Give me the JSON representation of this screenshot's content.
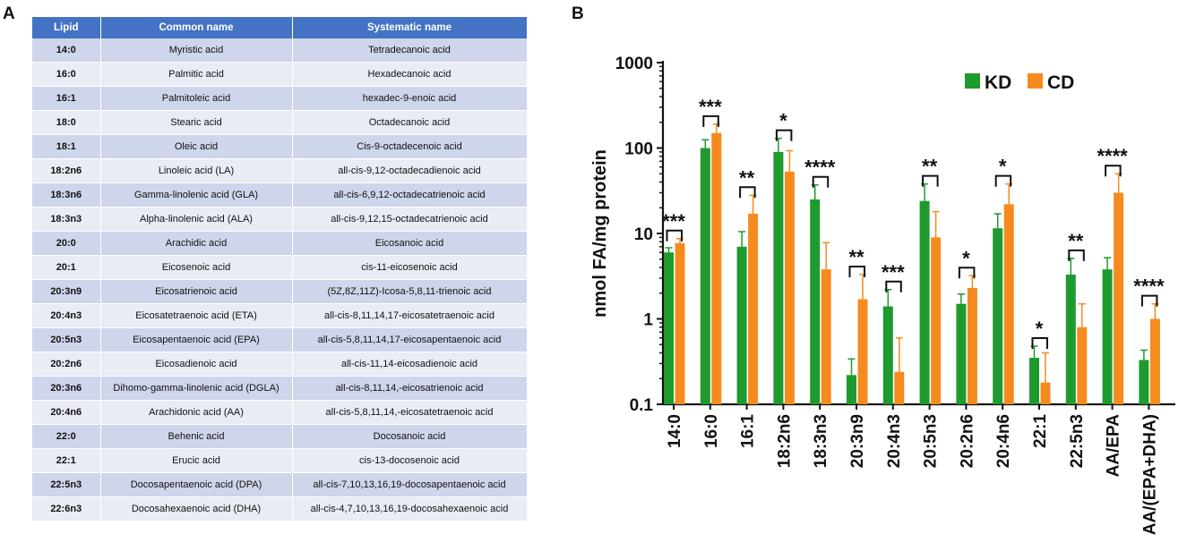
{
  "panel_a": {
    "label": "A",
    "headers": [
      "Lipid",
      "Common name",
      "Systematic name"
    ],
    "rows": [
      {
        "lipid": "14:0",
        "common": "Myristic acid",
        "systematic": "Tetradecanoic acid"
      },
      {
        "lipid": "16:0",
        "common": "Palmitic acid",
        "systematic": "Hexadecanoic acid"
      },
      {
        "lipid": "16:1",
        "common": "Palmitoleic acid",
        "systematic": "hexadec-9-enoic acid"
      },
      {
        "lipid": "18:0",
        "common": "Stearic acid",
        "systematic": "Octadecanoic acid"
      },
      {
        "lipid": "18:1",
        "common": "Oleic acid",
        "systematic": "Cis-9-octadecenoic acid"
      },
      {
        "lipid": "18:2n6",
        "common": "Linoleic acid (LA)",
        "systematic": "all-cis-9,12-octadecadienoic acid"
      },
      {
        "lipid": "18:3n6",
        "common": "Gamma-linolenic acid (GLA)",
        "systematic": "all-cis-6,9,12-octadecatrienoic acid"
      },
      {
        "lipid": "18:3n3",
        "common": "Alpha-linolenic acid (ALA)",
        "systematic": "all-cis-9,12,15-octadecatrienoic acid"
      },
      {
        "lipid": "20:0",
        "common": "Arachidic acid",
        "systematic": "Eicosanoic acid"
      },
      {
        "lipid": "20:1",
        "common": "Eicosenoic acid",
        "systematic": "cis-11-eicosenoic acid"
      },
      {
        "lipid": "20:3n9",
        "common": "Eicosatrienoic acid",
        "systematic": "(5Z,8Z,11Z)-Icosa-5,8,11-trienoic acid"
      },
      {
        "lipid": "20:4n3",
        "common": "Eicosatetraenoic acid (ETA)",
        "systematic": "all-cis-8,11,14,17-eicosatetraenoic acid"
      },
      {
        "lipid": "20:5n3",
        "common": "Eicosapentaenoic acid (EPA)",
        "systematic": "all-cis-5,8,11,14,17-eicosapentaenoic acid"
      },
      {
        "lipid": "20:2n6",
        "common": "Eicosadienoic acid",
        "systematic": "all-cis-11,14-eicosadienoic acid"
      },
      {
        "lipid": "20:3n6",
        "common": "Dihomo-gamma-linolenic acid (DGLA)",
        "systematic": "all-cis-8,11,14,-eicosatrienoic acid"
      },
      {
        "lipid": "20:4n6",
        "common": "Arachidonic acid (AA)",
        "systematic": "all-cis-5,8,11,14,-eicosatetraenoic acid"
      },
      {
        "lipid": "22:0",
        "common": "Behenic acid",
        "systematic": "Docosanoic acid"
      },
      {
        "lipid": "22:1",
        "common": "Erucic acid",
        "systematic": "cis-13-docosenoic acid"
      },
      {
        "lipid": "22:5n3",
        "common": "Docosapentaenoic acid (DPA)",
        "systematic": "all-cis-7,10,13,16,19-docosapentaenoic acid"
      },
      {
        "lipid": "22:6n3",
        "common": "Docosahexaenoic acid (DHA)",
        "systematic": "all-cis-4,7,10,13,16,19-docosahexaenoic acid"
      }
    ]
  },
  "chart_data": {
    "panel_label": "B",
    "type": "bar",
    "scale": "log",
    "ylabel": "nmol FA/mg protein",
    "xlabel": "",
    "ylim": [
      0.1,
      1000
    ],
    "yticks": [
      "0.1",
      "1",
      "10",
      "100",
      "1000"
    ],
    "legend_position": "top-right",
    "colors": {
      "KD": "#1e9a2e",
      "CD": "#f58b1f"
    },
    "categories": [
      "14:0",
      "16:0",
      "16:1",
      "18:2n6",
      "18:3n3",
      "20:3n9",
      "20:4n3",
      "20:5n3",
      "20:2n6",
      "20:4n6",
      "22:1",
      "22:5n3",
      "AA/EPA",
      "AA/(EPA+DHA)"
    ],
    "series": [
      {
        "name": "KD",
        "values": [
          6,
          100,
          7,
          90,
          25,
          0.22,
          1.4,
          24,
          1.5,
          11.5,
          0.35,
          3.3,
          3.8,
          0.33
        ],
        "error": [
          0.8,
          25,
          3.5,
          40,
          12,
          0.12,
          0.8,
          14,
          0.45,
          5.5,
          0.13,
          1.8,
          1.4,
          0.1
        ]
      },
      {
        "name": "CD",
        "values": [
          7.7,
          150,
          17,
          53,
          3.8,
          1.7,
          0.24,
          9,
          2.3,
          22,
          0.18,
          0.8,
          30,
          1
        ]
      },
      {
        "name": "CD error",
        "values": [
          1,
          40,
          11,
          40,
          4,
          1.6,
          0.36,
          9,
          0.9,
          16,
          0.22,
          0.7,
          20,
          0.5
        ]
      }
    ],
    "significance": [
      "***",
      "***",
      "**",
      "*",
      "****",
      "**",
      "***",
      "**",
      "*",
      "*",
      "*",
      "**",
      "****",
      "****"
    ]
  }
}
